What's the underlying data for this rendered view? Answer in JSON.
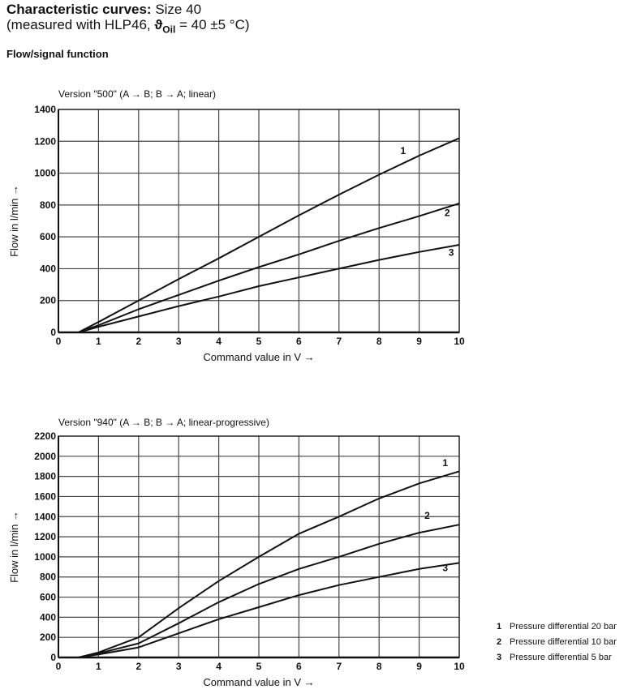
{
  "header": {
    "title_bold": "Characteristic curves:",
    "title_rest": " Size 40",
    "subtitle_pre": "(measured with HLP46, ",
    "theta": "ϑ",
    "theta_sub": "Oil",
    "subtitle_post": " = 40 ±5 °C)",
    "section": "Flow/signal function"
  },
  "legend": [
    {
      "id": "1",
      "label": "Pressure differential 20 bar"
    },
    {
      "id": "2",
      "label": "Pressure differential 10 bar"
    },
    {
      "id": "3",
      "label": "Pressure differential 5 bar"
    }
  ],
  "chart_data": [
    {
      "type": "line",
      "title": "Version \"500\" (A → B; B → A; linear)",
      "xlabel": "Command value in V →",
      "ylabel": "Flow in l/min →",
      "xlim": [
        0,
        10
      ],
      "ylim": [
        0,
        1400
      ],
      "xticks": [
        0,
        1,
        2,
        3,
        4,
        5,
        6,
        7,
        8,
        9,
        10
      ],
      "yticks": [
        0,
        200,
        400,
        600,
        800,
        1000,
        1200,
        1400
      ],
      "grid": true,
      "series": [
        {
          "name": "1",
          "x": [
            0.5,
            1,
            2,
            3,
            4,
            5,
            6,
            7,
            8,
            9,
            10
          ],
          "y": [
            0,
            65,
            200,
            335,
            465,
            600,
            735,
            865,
            990,
            1110,
            1220
          ]
        },
        {
          "name": "2",
          "x": [
            0.5,
            1,
            2,
            3,
            4,
            5,
            6,
            7,
            8,
            9,
            10
          ],
          "y": [
            0,
            45,
            145,
            235,
            325,
            410,
            490,
            575,
            655,
            730,
            810
          ]
        },
        {
          "name": "3",
          "x": [
            0.5,
            1,
            2,
            3,
            4,
            5,
            6,
            7,
            8,
            9,
            10
          ],
          "y": [
            0,
            35,
            100,
            165,
            225,
            290,
            345,
            400,
            455,
            505,
            550
          ]
        }
      ],
      "curve_labels": [
        {
          "text": "1",
          "x": 8.6,
          "y": 1120
        },
        {
          "text": "2",
          "x": 9.7,
          "y": 730
        },
        {
          "text": "3",
          "x": 9.8,
          "y": 480
        }
      ]
    },
    {
      "type": "line",
      "title": "Version \"940\" (A → B; B → A; linear-progressive)",
      "xlabel": "Command value in V →",
      "ylabel": "Flow in l/min →",
      "xlim": [
        0,
        10
      ],
      "ylim": [
        0,
        2200
      ],
      "xticks": [
        0,
        1,
        2,
        3,
        4,
        5,
        6,
        7,
        8,
        9,
        10
      ],
      "yticks": [
        0,
        200,
        400,
        600,
        800,
        1000,
        1200,
        1400,
        1600,
        1800,
        2000,
        2200
      ],
      "grid": true,
      "series": [
        {
          "name": "1",
          "x": [
            0,
            0.5,
            1,
            2,
            3,
            4,
            5,
            6,
            7,
            8,
            9,
            10
          ],
          "y": [
            0,
            0,
            50,
            200,
            490,
            760,
            1000,
            1230,
            1400,
            1580,
            1730,
            1850
          ]
        },
        {
          "name": "2",
          "x": [
            0,
            0.5,
            1,
            2,
            3,
            4,
            5,
            6,
            7,
            8,
            9,
            10
          ],
          "y": [
            0,
            0,
            40,
            140,
            340,
            550,
            730,
            880,
            1000,
            1130,
            1240,
            1320
          ]
        },
        {
          "name": "3",
          "x": [
            0,
            0.5,
            1,
            2,
            3,
            4,
            5,
            6,
            7,
            8,
            9,
            10
          ],
          "y": [
            0,
            0,
            30,
            100,
            240,
            380,
            500,
            620,
            720,
            800,
            880,
            940
          ]
        }
      ],
      "curve_labels": [
        {
          "text": "1",
          "x": 9.65,
          "y": 1900
        },
        {
          "text": "2",
          "x": 9.2,
          "y": 1380
        },
        {
          "text": "3",
          "x": 9.65,
          "y": 860
        }
      ]
    }
  ]
}
